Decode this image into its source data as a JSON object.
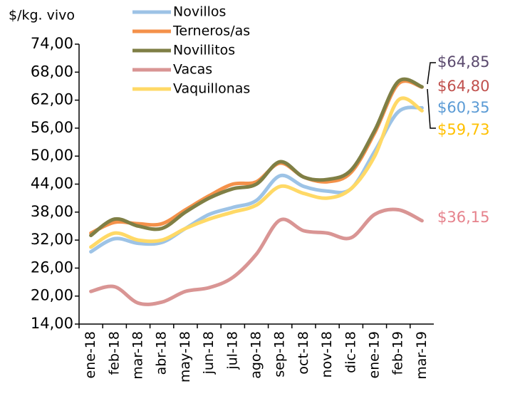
{
  "chart_data": {
    "type": "line",
    "ylabel": "$/kg. vivo",
    "categories": [
      "ene-18",
      "feb-18",
      "mar-18",
      "abr-18",
      "may-18",
      "jun-18",
      "jul-18",
      "ago-18",
      "sep-18",
      "oct-18",
      "nov-18",
      "dic-18",
      "ene-19",
      "feb-19",
      "mar-19"
    ],
    "series": [
      {
        "name": "Novillos",
        "color": "#9dc3e6",
        "label_color": "#5b9bd5",
        "values": [
          29.5,
          32.3,
          31.3,
          31.5,
          34.5,
          37.5,
          39,
          40.5,
          45.8,
          43.5,
          42.5,
          43,
          51,
          59.5,
          60.35
        ],
        "value_labels": [
          null,
          null,
          null,
          null,
          null,
          null,
          null,
          null,
          null,
          null,
          null,
          null,
          null,
          null,
          "$60,35"
        ]
      },
      {
        "name": "Terneros/as",
        "color": "#f4914a",
        "label_color": "#c0504d",
        "values": [
          33.5,
          35.8,
          35.5,
          35.5,
          38.5,
          41.5,
          44,
          44.5,
          48.5,
          45.5,
          44.5,
          46.5,
          55,
          65.5,
          64.8
        ],
        "value_labels": [
          null,
          null,
          null,
          null,
          null,
          null,
          null,
          null,
          null,
          null,
          null,
          null,
          null,
          null,
          "$64,80"
        ]
      },
      {
        "name": "Novillitos",
        "color": "#7f7f45",
        "label_color": "#5b4a6e",
        "values": [
          33,
          36.5,
          35,
          34.5,
          38,
          41,
          43,
          44,
          48.8,
          45.5,
          45,
          47,
          55.5,
          66,
          64.85
        ],
        "value_labels": [
          null,
          null,
          null,
          null,
          null,
          null,
          null,
          null,
          null,
          null,
          null,
          null,
          null,
          null,
          "$64,85"
        ]
      },
      {
        "name": "Vacas",
        "color": "#d99594",
        "label_color": "#e6828c",
        "values": [
          21,
          22,
          18.5,
          18.7,
          21,
          21.8,
          24,
          29,
          36.3,
          34,
          33.5,
          32.5,
          37.5,
          38.5,
          36.15
        ],
        "value_labels": [
          null,
          null,
          null,
          null,
          null,
          null,
          null,
          null,
          null,
          null,
          null,
          null,
          null,
          null,
          "$36,15"
        ]
      },
      {
        "name": "Vaquillonas",
        "color": "#ffd966",
        "label_color": "#ffc000",
        "values": [
          30.5,
          33.5,
          32,
          32,
          34.5,
          36.5,
          38,
          39.5,
          43.5,
          42,
          41,
          43,
          50,
          62,
          59.73
        ],
        "value_labels": [
          null,
          null,
          null,
          null,
          null,
          null,
          null,
          null,
          null,
          null,
          null,
          null,
          null,
          null,
          "$59,73"
        ]
      }
    ],
    "ylim": [
      14,
      74
    ],
    "yticks": [
      {
        "value": 14,
        "label": "14,00"
      },
      {
        "value": 20,
        "label": "20,00"
      },
      {
        "value": 26,
        "label": "26,00"
      },
      {
        "value": 32,
        "label": "32,00"
      },
      {
        "value": 38,
        "label": "38,00"
      },
      {
        "value": 44,
        "label": "44,00"
      },
      {
        "value": 50,
        "label": "50,00"
      },
      {
        "value": 56,
        "label": "56,00"
      },
      {
        "value": 62,
        "label": "62,00"
      },
      {
        "value": 68,
        "label": "68,00"
      },
      {
        "value": 74,
        "label": "74,00"
      }
    ],
    "grid": false,
    "legend": "top"
  }
}
